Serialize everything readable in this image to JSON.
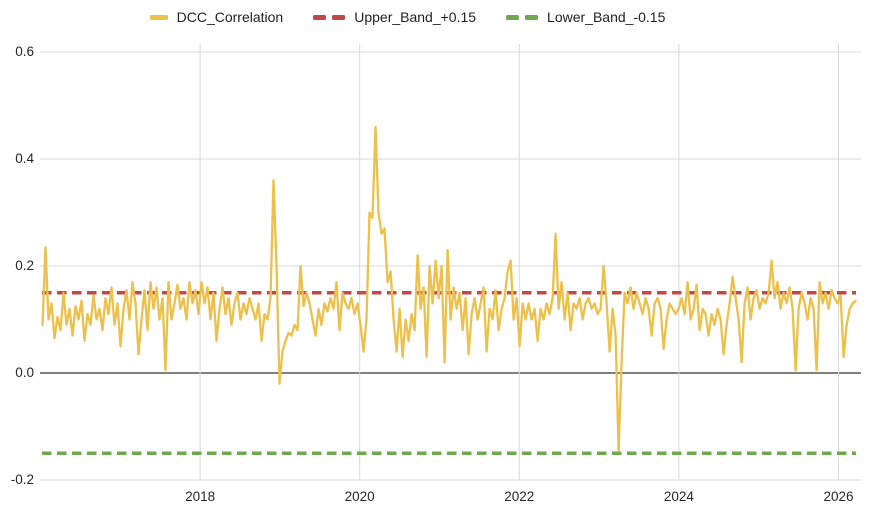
{
  "chart_data": {
    "type": "line",
    "title": "",
    "grid": true,
    "legend_position": "top-center",
    "xlim": [
      2016.0,
      2026.3
    ],
    "ylim": [
      -0.2,
      0.6
    ],
    "upper_band_value": 0.15,
    "lower_band_value": -0.15,
    "zero_line_value": 0.0,
    "colors": {
      "series": "#edc04b",
      "upper_band": "#be4b48",
      "lower_band": "#6ea84f",
      "gridline": "#d9d9d9",
      "zero_line": "#333333",
      "tick_text": "#262626"
    },
    "legend": [
      {
        "label": "DCC_Correlation",
        "color": "#edc04b",
        "style": "solid"
      },
      {
        "label": "Upper_Band_+0.15",
        "color": "#be4b48",
        "style": "dashed"
      },
      {
        "label": "Lower_Band_-0.15",
        "color": "#6ea84f",
        "style": "dashed"
      }
    ],
    "y_axis": {
      "ticks": [
        {
          "label": "0.6",
          "value": 0.6
        },
        {
          "label": "0.4",
          "value": 0.4
        },
        {
          "label": "0.2",
          "value": 0.2
        },
        {
          "label": "0.0",
          "value": 0.0
        },
        {
          "label": "-0.2",
          "value": -0.2
        }
      ]
    },
    "x_axis": {
      "ticks": [
        {
          "label": "2018",
          "year": 2018
        },
        {
          "label": "2020",
          "year": 2020
        },
        {
          "label": "2022",
          "year": 2022
        },
        {
          "label": "2024",
          "year": 2024
        },
        {
          "label": "2026",
          "year": 2026
        }
      ]
    },
    "series": [
      {
        "name": "DCC_Correlation",
        "x_start_year": 2016.025,
        "x_step_years": 0.0376,
        "values": [
          0.09,
          0.235,
          0.1,
          0.13,
          0.065,
          0.105,
          0.08,
          0.15,
          0.09,
          0.12,
          0.07,
          0.125,
          0.1,
          0.135,
          0.06,
          0.11,
          0.09,
          0.145,
          0.1,
          0.12,
          0.08,
          0.14,
          0.11,
          0.16,
          0.09,
          0.13,
          0.05,
          0.12,
          0.155,
          0.1,
          0.17,
          0.13,
          0.035,
          0.1,
          0.155,
          0.08,
          0.17,
          0.12,
          0.16,
          0.1,
          0.14,
          0.005,
          0.17,
          0.1,
          0.13,
          0.165,
          0.12,
          0.14,
          0.1,
          0.17,
          0.13,
          0.155,
          0.11,
          0.17,
          0.13,
          0.16,
          0.1,
          0.15,
          0.06,
          0.12,
          0.16,
          0.11,
          0.14,
          0.09,
          0.13,
          0.15,
          0.1,
          0.13,
          0.11,
          0.14,
          0.12,
          0.1,
          0.13,
          0.06,
          0.11,
          0.1,
          0.14,
          0.36,
          0.2,
          -0.02,
          0.04,
          0.06,
          0.075,
          0.07,
          0.09,
          0.08,
          0.2,
          0.125,
          0.15,
          0.13,
          0.1,
          0.07,
          0.12,
          0.09,
          0.13,
          0.115,
          0.14,
          0.12,
          0.17,
          0.08,
          0.15,
          0.13,
          0.12,
          0.14,
          0.11,
          0.13,
          0.09,
          0.04,
          0.1,
          0.3,
          0.29,
          0.46,
          0.3,
          0.26,
          0.27,
          0.17,
          0.19,
          0.1,
          0.04,
          0.12,
          0.03,
          0.1,
          0.06,
          0.11,
          0.08,
          0.22,
          0.12,
          0.16,
          0.03,
          0.2,
          0.13,
          0.21,
          0.14,
          0.2,
          0.02,
          0.23,
          0.1,
          0.16,
          0.12,
          0.15,
          0.08,
          0.14,
          0.035,
          0.11,
          0.14,
          0.1,
          0.13,
          0.16,
          0.04,
          0.12,
          0.1,
          0.155,
          0.08,
          0.12,
          0.14,
          0.19,
          0.21,
          0.1,
          0.14,
          0.05,
          0.13,
          0.1,
          0.13,
          0.1,
          0.12,
          0.06,
          0.12,
          0.1,
          0.13,
          0.11,
          0.14,
          0.26,
          0.12,
          0.17,
          0.1,
          0.15,
          0.08,
          0.13,
          0.12,
          0.14,
          0.1,
          0.13,
          0.14,
          0.12,
          0.13,
          0.11,
          0.12,
          0.2,
          0.13,
          0.04,
          0.12,
          0.07,
          -0.145,
          0.02,
          0.15,
          0.13,
          0.16,
          0.12,
          0.15,
          0.13,
          0.11,
          0.14,
          0.12,
          0.07,
          0.13,
          0.14,
          0.12,
          0.045,
          0.1,
          0.13,
          0.12,
          0.11,
          0.12,
          0.14,
          0.11,
          0.17,
          0.1,
          0.12,
          0.165,
          0.08,
          0.12,
          0.11,
          0.07,
          0.11,
          0.09,
          0.12,
          0.1,
          0.035,
          0.09,
          0.13,
          0.18,
          0.14,
          0.1,
          0.02,
          0.13,
          0.16,
          0.1,
          0.14,
          0.155,
          0.12,
          0.14,
          0.13,
          0.15,
          0.21,
          0.14,
          0.17,
          0.12,
          0.15,
          0.13,
          0.16,
          0.12,
          0.005,
          0.12,
          0.15,
          0.13,
          0.1,
          0.14,
          0.12,
          0.005,
          0.17,
          0.13,
          0.15,
          0.12,
          0.155,
          0.14,
          0.13,
          0.145,
          0.03,
          0.09,
          0.12,
          0.13,
          0.135
        ]
      }
    ]
  }
}
